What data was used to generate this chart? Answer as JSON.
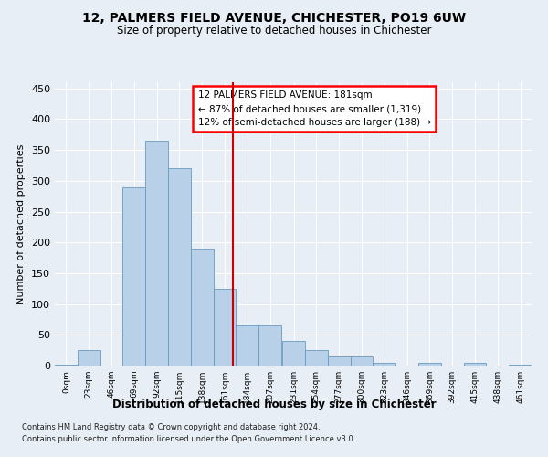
{
  "title1": "12, PALMERS FIELD AVENUE, CHICHESTER, PO19 6UW",
  "title2": "Size of property relative to detached houses in Chichester",
  "xlabel": "Distribution of detached houses by size in Chichester",
  "ylabel": "Number of detached properties",
  "footer1": "Contains HM Land Registry data © Crown copyright and database right 2024.",
  "footer2": "Contains public sector information licensed under the Open Government Licence v3.0.",
  "annotation_line1": "12 PALMERS FIELD AVENUE: 181sqm",
  "annotation_line2": "← 87% of detached houses are smaller (1,319)",
  "annotation_line3": "12% of semi-detached houses are larger (188) →",
  "bar_color": "#b8d0e8",
  "bar_edge_color": "#6a9abf",
  "vline_color": "#cc0000",
  "vline_x": 181,
  "bin_edges": [
    0,
    23,
    46,
    69,
    92,
    115,
    138,
    161,
    184,
    207,
    231,
    254,
    277,
    300,
    323,
    346,
    369,
    392,
    415,
    438,
    461,
    484
  ],
  "bar_heights": [
    2,
    25,
    0,
    290,
    365,
    320,
    190,
    125,
    65,
    65,
    40,
    25,
    15,
    15,
    5,
    0,
    5,
    0,
    5,
    0,
    2
  ],
  "ylim": [
    0,
    460
  ],
  "yticks": [
    0,
    50,
    100,
    150,
    200,
    250,
    300,
    350,
    400,
    450
  ],
  "xtick_labels": [
    "0sqm",
    "23sqm",
    "46sqm",
    "69sqm",
    "92sqm",
    "115sqm",
    "138sqm",
    "161sqm",
    "184sqm",
    "207sqm",
    "231sqm",
    "254sqm",
    "277sqm",
    "300sqm",
    "323sqm",
    "346sqm",
    "369sqm",
    "392sqm",
    "415sqm",
    "438sqm",
    "461sqm"
  ],
  "bg_color": "#e8eef5",
  "grid_color": "#ffffff"
}
